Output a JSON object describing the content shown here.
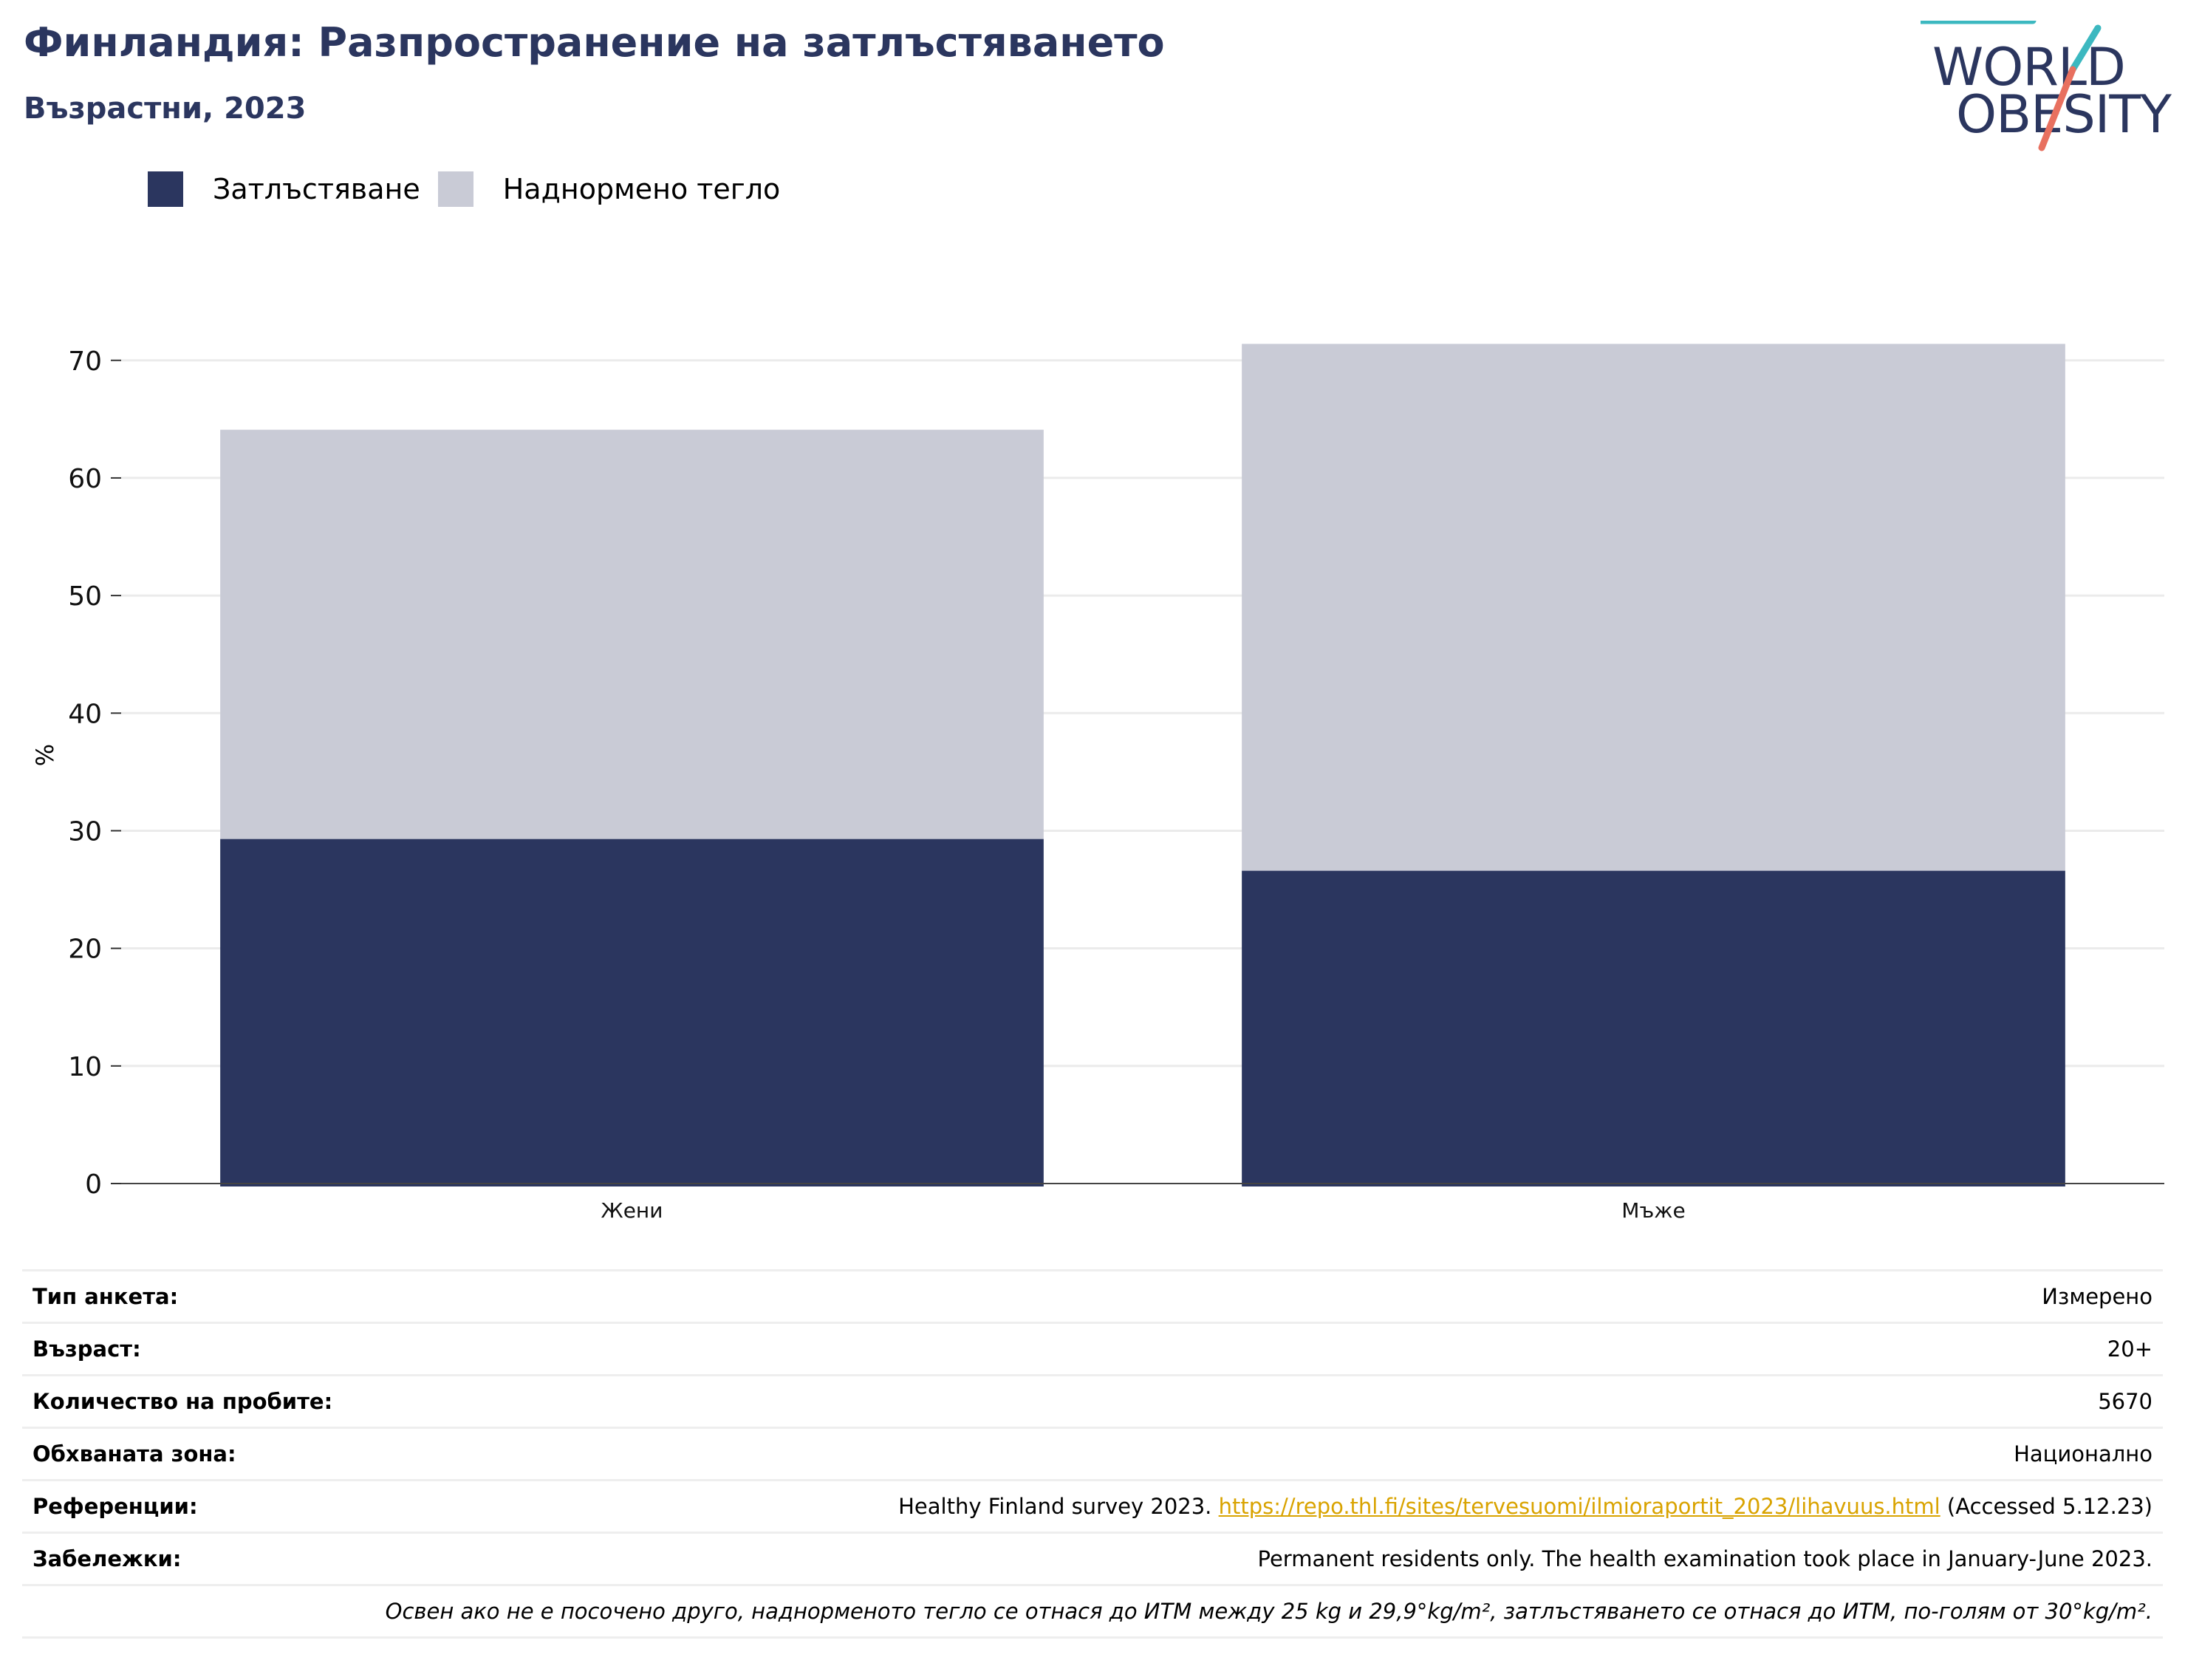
{
  "header": {
    "title": "Финландия: Разпространение на затлъстяването",
    "subtitle": "Възрастни, 2023"
  },
  "logo": {
    "line1": "WORLD",
    "line2": "OBESITY",
    "color_text": "#2b365f",
    "color_teal": "#3cb8c0",
    "color_coral": "#e8705f"
  },
  "legend": [
    {
      "label": "Затлъстяване",
      "color": "#2b365f"
    },
    {
      "label": "Наднормено тегло",
      "color": "#c9cbd6"
    }
  ],
  "chart_data": {
    "type": "bar",
    "stacked": true,
    "categories": [
      "Жени",
      "Мъже"
    ],
    "series": [
      {
        "name": "Затлъстяване",
        "values": [
          29.3,
          26.6
        ],
        "color": "#2b365f"
      },
      {
        "name": "Наднормено тегло",
        "values": [
          34.8,
          44.8
        ],
        "color": "#c9cbd6"
      }
    ],
    "ylabel": "%",
    "ylim": [
      0,
      73
    ],
    "yticks": [
      0,
      10,
      20,
      30,
      40,
      50,
      60,
      70
    ],
    "grid": true,
    "legend_position": "top-left"
  },
  "info": {
    "rows": [
      {
        "key": "Тип анкета:",
        "value": "Измерено"
      },
      {
        "key": "Възраст:",
        "value": "20+"
      },
      {
        "key": "Количество на пробите:",
        "value": "5670"
      },
      {
        "key": "Обхваната зона:",
        "value": "Национално"
      }
    ],
    "references": {
      "key": "Референции:",
      "prefix": "Healthy Finland survey 2023. ",
      "link": "https://repo.thl.fi/sites/tervesuomi/ilmioraportit_2023/lihavuus.html",
      "suffix": " (Accessed 5.12.23)"
    },
    "remarks": {
      "key": "Забележки:",
      "value": "Permanent residents only. The health examination took place in January-June 2023."
    },
    "footnote": "Освен ако не е посочено друго, наднорменото тегло се отнася до ИТМ между 25 kg и 29,9°kg/m², затлъстяването се отнася до ИТМ, по-голям от 30°kg/m²."
  }
}
